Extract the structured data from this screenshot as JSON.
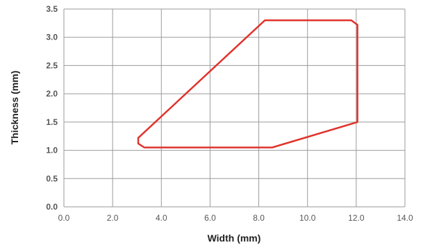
{
  "chart_data": {
    "type": "line",
    "xlabel": "Width (mm)",
    "ylabel": "Thickness (mm)",
    "xlim": [
      0,
      14
    ],
    "ylim": [
      0,
      3.5
    ],
    "xticks": [
      "0.0",
      "2.0",
      "4.0",
      "6.0",
      "8.0",
      "10.0",
      "12.0",
      "14.0"
    ],
    "yticks": [
      "0.0",
      "0.5",
      "1.0",
      "1.5",
      "2.0",
      "2.5",
      "3.0",
      "3.5"
    ],
    "grid": true,
    "series": [
      {
        "color": "#e0322b",
        "closed": true,
        "points": [
          [
            8.25,
            3.3
          ],
          [
            11.8,
            3.3
          ],
          [
            12.05,
            3.22
          ],
          [
            12.05,
            1.5
          ],
          [
            8.55,
            1.05
          ],
          [
            3.3,
            1.05
          ],
          [
            3.05,
            1.12
          ],
          [
            3.05,
            1.22
          ]
        ]
      }
    ]
  }
}
